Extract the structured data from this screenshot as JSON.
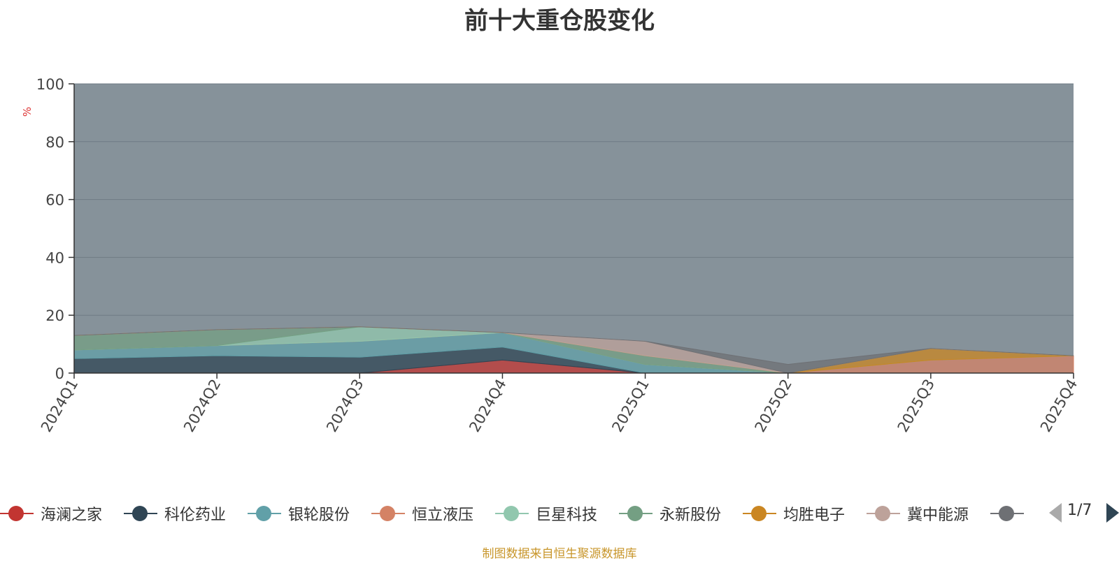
{
  "chart_data": {
    "type": "area",
    "title": "前十大重仓股变化",
    "ylabel": "%",
    "ylim": [
      0,
      100
    ],
    "yticks": [
      0,
      20,
      40,
      60,
      80,
      100
    ],
    "categories": [
      "2024Q1",
      "2024Q2",
      "2024Q3",
      "2024Q4",
      "2025Q1",
      "2025Q2",
      "2025Q3",
      "2025Q4"
    ],
    "stacked": true,
    "grid": true,
    "legend_position": "bottom",
    "series": [
      {
        "name": "海澜之家",
        "color": "#c23531",
        "values": [
          0,
          0,
          0,
          4.5,
          0,
          0,
          0,
          0
        ]
      },
      {
        "name": "科伦药业",
        "color": "#2f4554",
        "values": [
          5,
          6,
          5.5,
          4.5,
          0,
          0,
          0,
          0
        ]
      },
      {
        "name": "银轮股份",
        "color": "#61a0a8",
        "values": [
          3,
          3.5,
          5.5,
          5,
          3,
          0,
          0,
          0
        ]
      },
      {
        "name": "恒立液压",
        "color": "#d48265",
        "values": [
          0,
          0,
          0,
          0,
          0,
          0,
          4.5,
          6
        ]
      },
      {
        "name": "巨星科技",
        "color": "#91c7ae",
        "values": [
          0,
          0,
          5,
          0,
          0,
          0,
          0,
          0
        ]
      },
      {
        "name": "永新股份",
        "color": "#749f83",
        "values": [
          5,
          5.5,
          0,
          0,
          3,
          0,
          0,
          0
        ]
      },
      {
        "name": "均胜电子",
        "color": "#ca8622",
        "values": [
          0,
          0,
          0,
          0,
          0,
          0,
          4,
          0
        ]
      },
      {
        "name": "冀中能源",
        "color": "#bda29a",
        "values": [
          0,
          0,
          0,
          0,
          5,
          0,
          0,
          0
        ]
      },
      {
        "name": "",
        "color": "#6e7074",
        "values": [
          0,
          0,
          0,
          0,
          0,
          3,
          0,
          0
        ]
      }
    ]
  },
  "legend": {
    "pager": "1/7",
    "items": [
      {
        "name": "海澜之家",
        "color": "#c23531"
      },
      {
        "name": "科伦药业",
        "color": "#2f4554"
      },
      {
        "name": "银轮股份",
        "color": "#61a0a8"
      },
      {
        "name": "恒立液压",
        "color": "#d48265"
      },
      {
        "name": "巨星科技",
        "color": "#91c7ae"
      },
      {
        "name": "永新股份",
        "color": "#749f83"
      },
      {
        "name": "均胜电子",
        "color": "#ca8622"
      },
      {
        "name": "冀中能源",
        "color": "#bda29a"
      },
      {
        "name": "",
        "color": "#6e7074"
      }
    ]
  },
  "footer": {
    "source_note": "制图数据来自恒生聚源数据库"
  }
}
